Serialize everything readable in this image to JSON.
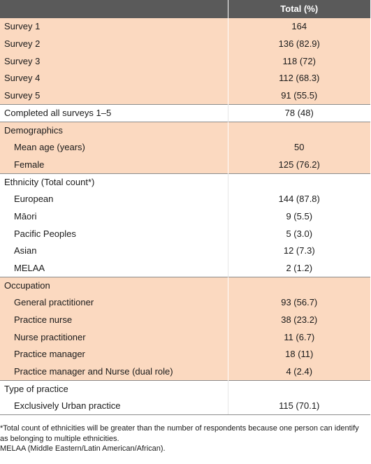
{
  "header": {
    "col1": "",
    "col2": "Total (%)"
  },
  "rows": [
    {
      "label": "Survey 1",
      "value": "164"
    },
    {
      "label": "Survey 2",
      "value": "136 (82.9)"
    },
    {
      "label": "Survey 3",
      "value": "118 (72)"
    },
    {
      "label": "Survey 4",
      "value": "112 (68.3)"
    },
    {
      "label": "Survey 5",
      "value": "91 (55.5)"
    },
    {
      "label": "Completed all surveys 1–5",
      "value": "78 (48)"
    },
    {
      "label": "Demographics",
      "value": ""
    },
    {
      "label": "Mean age (years)",
      "value": "50"
    },
    {
      "label": "Female",
      "value": "125 (76.2)"
    },
    {
      "label": "Ethnicity (Total count*)",
      "value": ""
    },
    {
      "label": "European",
      "value": "144 (87.8)"
    },
    {
      "label": "Māori",
      "value": "9 (5.5)"
    },
    {
      "label": "Pacific Peoples",
      "value": "5 (3.0)"
    },
    {
      "label": "Asian",
      "value": "12 (7.3)"
    },
    {
      "label": "MELAA",
      "value": "2 (1.2)"
    },
    {
      "label": "Occupation",
      "value": ""
    },
    {
      "label": "General practitioner",
      "value": "93 (56.7)"
    },
    {
      "label": "Practice nurse",
      "value": "38 (23.2)"
    },
    {
      "label": "Nurse practitioner",
      "value": "11 (6.7)"
    },
    {
      "label": "Practice manager",
      "value": "18 (11)"
    },
    {
      "label": "Practice manager and Nurse (dual role)",
      "value": "4 (2.4)"
    },
    {
      "label": "Type of practice",
      "value": ""
    },
    {
      "label": "Exclusively Urban practice",
      "value": "115 (70.1)"
    }
  ],
  "footnotes": {
    "ethnicity": "*Total count of ethnicities will be greater than the number of respondents because one person can identify as belonging to multiple ethnicities.",
    "melaa": "MELAA (Middle Eastern/Latin American/African)."
  }
}
